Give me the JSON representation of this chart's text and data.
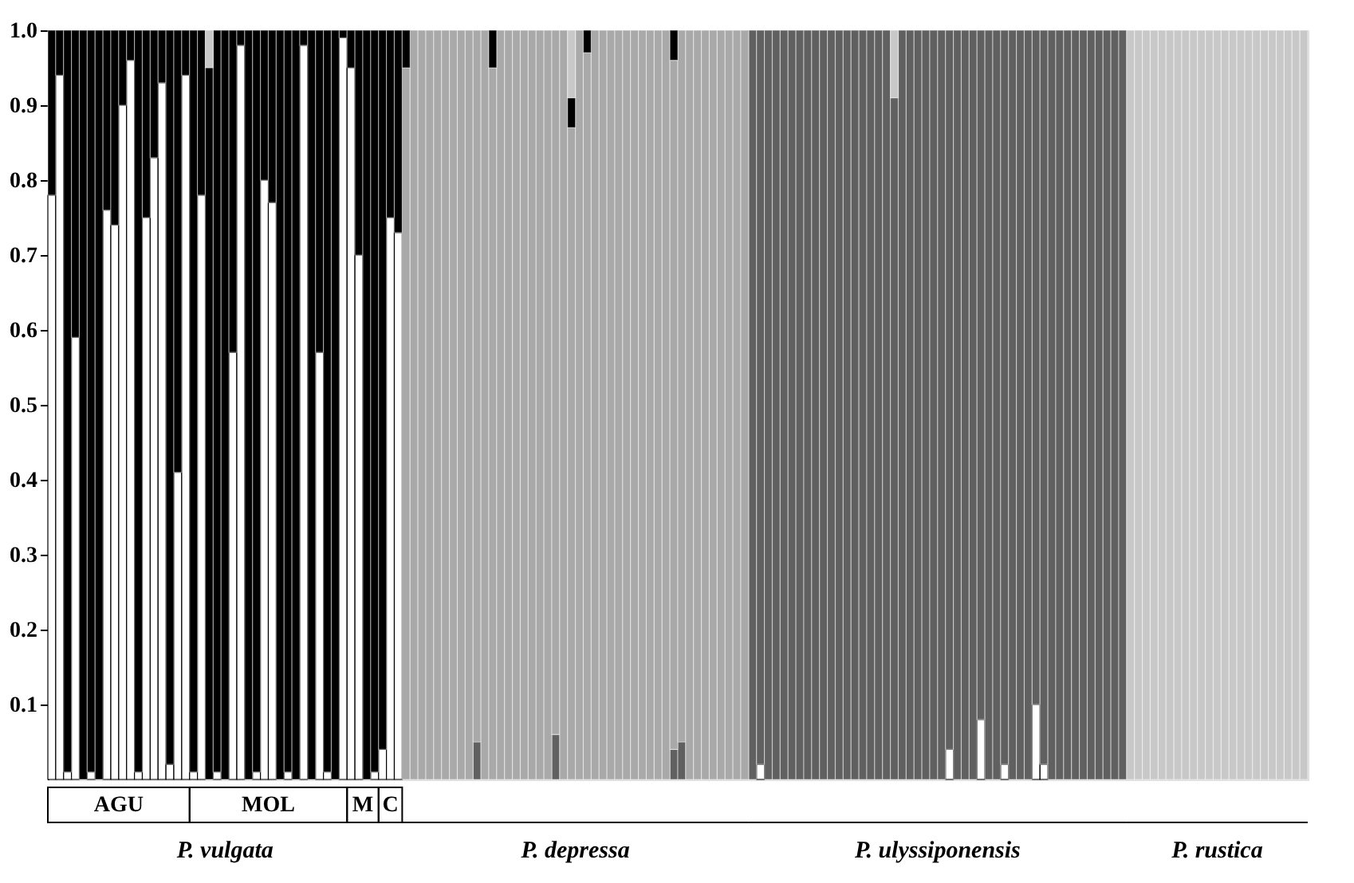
{
  "chart_data": {
    "type": "bar",
    "stacked": true,
    "categories": [
      null,
      null,
      null,
      null,
      null,
      null,
      null,
      null,
      null,
      null,
      null,
      null,
      null,
      null,
      null,
      null,
      null,
      null,
      null,
      null,
      null,
      null,
      null,
      null,
      null,
      null,
      null,
      null,
      null,
      null,
      null,
      null,
      null,
      null,
      null,
      null,
      null,
      null,
      null,
      null,
      null,
      null,
      null,
      null,
      null,
      null,
      null,
      null,
      null,
      null,
      null,
      null,
      null,
      null,
      null,
      null,
      null,
      null,
      null,
      null,
      null,
      null,
      null,
      null,
      null,
      null,
      null,
      null,
      null,
      null,
      null,
      null,
      null,
      null,
      null,
      null,
      null,
      null,
      null,
      null,
      null,
      null,
      null,
      null,
      null,
      null,
      null,
      null,
      null,
      null,
      null,
      null,
      null,
      null,
      null,
      null,
      null,
      null,
      null,
      null,
      null,
      null,
      null,
      null,
      null,
      null,
      null,
      null,
      null,
      null,
      null,
      null,
      null,
      null,
      null,
      null,
      null,
      null,
      null,
      null,
      null,
      null,
      null,
      null,
      null,
      null,
      null,
      null,
      null,
      null,
      null,
      null,
      null,
      null,
      null,
      null,
      null,
      null,
      null,
      null,
      null,
      null,
      null,
      null,
      null,
      null,
      null,
      null,
      null,
      null,
      null,
      null,
      null,
      null,
      null,
      null,
      null,
      null,
      null,
      null
    ],
    "series": [
      {
        "color": "#ffffff",
        "values": [
          0.78,
          0.94,
          0.01,
          0.59,
          0,
          0.01,
          0,
          0.76,
          0.74,
          0.9,
          0.96,
          0.01,
          0.75,
          0.83,
          0.93,
          0.02,
          0.41,
          0.94,
          0.01,
          0.78,
          0,
          0.01,
          0,
          0.57,
          0.98,
          0,
          0.01,
          0.8,
          0.77,
          0,
          0.01,
          0,
          0.98,
          0,
          0.57,
          0.01,
          0,
          0.99,
          0.95,
          0.7,
          0,
          0.01,
          0.04,
          0.75,
          0.73,
          0,
          0,
          0,
          0,
          0,
          0,
          0,
          0,
          0,
          0,
          0,
          0,
          0,
          0,
          0,
          0,
          0,
          0,
          0,
          0,
          0,
          0,
          0,
          0,
          0,
          0,
          0,
          0,
          0,
          0,
          0,
          0,
          0,
          0,
          0,
          0,
          0,
          0,
          0,
          0,
          0,
          0,
          0,
          0,
          0,
          0.02,
          0,
          0,
          0,
          0,
          0,
          0,
          0,
          0,
          0,
          0,
          0,
          0,
          0,
          0,
          0,
          0,
          0,
          0,
          0,
          0,
          0,
          0,
          0,
          0.04,
          0,
          0,
          0,
          0.08,
          0,
          0,
          0.02,
          0,
          0,
          0,
          0.1,
          0.02,
          0,
          0,
          0,
          0,
          0,
          0,
          0,
          0,
          0,
          0,
          0,
          0,
          0,
          0,
          0,
          0,
          0,
          0,
          0,
          0,
          0,
          0,
          0,
          0,
          0,
          0,
          0,
          0,
          0,
          0,
          0,
          0,
          0
        ]
      },
      {
        "color": "#606060",
        "values": [
          0,
          0,
          0,
          0,
          0,
          0,
          0,
          0,
          0,
          0,
          0,
          0,
          0,
          0,
          0,
          0,
          0,
          0,
          0,
          0,
          0,
          0,
          0,
          0,
          0,
          0,
          0,
          0,
          0,
          0,
          0,
          0,
          0,
          0,
          0,
          0,
          0,
          0,
          0,
          0,
          0,
          0,
          0,
          0,
          0,
          0,
          0,
          0,
          0,
          0,
          0,
          0,
          0,
          0,
          0.05,
          0,
          0,
          0,
          0,
          0,
          0,
          0,
          0,
          0,
          0.06,
          0,
          0,
          0,
          0,
          0,
          0,
          0,
          0,
          0,
          0,
          0,
          0,
          0,
          0,
          0.04,
          0.05,
          0,
          0,
          0,
          0,
          0,
          0,
          0,
          0,
          1,
          0.98,
          1,
          1,
          1,
          1,
          1,
          1,
          1,
          1,
          1,
          1,
          1,
          1,
          1,
          1,
          1,
          1,
          0.91,
          1,
          1,
          1,
          1,
          1,
          1,
          0.96,
          1,
          1,
          1,
          0.92,
          1,
          1,
          0.98,
          1,
          1,
          1,
          0.9,
          0.98,
          1,
          1,
          1,
          1,
          1,
          1,
          1,
          1,
          1,
          1,
          0,
          0,
          0,
          0,
          0,
          0,
          0,
          0,
          0,
          0,
          0,
          0,
          0,
          0,
          0,
          0,
          0,
          0,
          0,
          0,
          0,
          0,
          0
        ]
      },
      {
        "color": "#a9a9a9",
        "values": [
          0,
          0,
          0,
          0,
          0,
          0,
          0,
          0,
          0,
          0,
          0,
          0,
          0,
          0,
          0,
          0,
          0,
          0,
          0,
          0,
          0,
          0,
          0,
          0,
          0,
          0,
          0,
          0,
          0,
          0,
          0,
          0,
          0,
          0,
          0,
          0,
          0,
          0,
          0,
          0,
          0,
          0,
          0,
          0,
          0,
          0.95,
          1,
          1,
          1,
          1,
          1,
          1,
          1,
          1,
          0.95,
          1,
          0.95,
          1,
          1,
          1,
          1,
          1,
          1,
          1,
          0.94,
          1,
          0.87,
          1,
          0.97,
          1,
          1,
          1,
          1,
          1,
          1,
          1,
          1,
          1,
          1,
          0.92,
          0.95,
          1,
          1,
          1,
          1,
          1,
          1,
          1,
          1,
          0,
          0,
          0,
          0,
          0,
          0,
          0,
          0,
          0,
          0,
          0,
          0,
          0,
          0,
          0,
          0,
          0,
          0,
          0,
          0,
          0,
          0,
          0,
          0,
          0,
          0,
          0,
          0,
          0,
          0,
          0,
          0,
          0,
          0,
          0,
          0,
          0,
          0,
          0,
          0,
          0,
          0,
          0,
          0,
          0,
          0,
          0,
          0,
          0,
          0,
          0,
          0,
          0,
          0,
          0,
          0,
          0,
          0,
          0,
          0,
          0,
          0,
          0,
          0,
          0,
          0,
          0,
          0,
          0,
          0,
          0
        ]
      },
      {
        "color": "#000000",
        "values": [
          0.22,
          0.06,
          0.99,
          0.41,
          1,
          0.99,
          1,
          0.24,
          0.26,
          0.1,
          0.04,
          0.99,
          0.25,
          0.17,
          0.07,
          0.98,
          0.59,
          0.06,
          0.99,
          0.22,
          0.95,
          0.99,
          1,
          0.43,
          0.02,
          1,
          0.99,
          0.2,
          0.23,
          1,
          0.99,
          1,
          0.02,
          1,
          0.43,
          0.99,
          1,
          0.01,
          0.05,
          0.3,
          1,
          0.99,
          0.96,
          0.25,
          0.27,
          0.05,
          0,
          0,
          0,
          0,
          0,
          0,
          0,
          0,
          0,
          0,
          0.05,
          0,
          0,
          0,
          0,
          0,
          0,
          0,
          0,
          0,
          0.04,
          0,
          0.03,
          0,
          0,
          0,
          0,
          0,
          0,
          0,
          0,
          0,
          0,
          0.04,
          0,
          0,
          0,
          0,
          0,
          0,
          0,
          0,
          0,
          0,
          0,
          0,
          0,
          0,
          0,
          0,
          0,
          0,
          0,
          0,
          0,
          0,
          0,
          0,
          0,
          0,
          0,
          0,
          0,
          0,
          0,
          0,
          0,
          0,
          0,
          0,
          0,
          0,
          0,
          0,
          0,
          0,
          0,
          0,
          0,
          0,
          0,
          0,
          0,
          0,
          0,
          0,
          0,
          0,
          0,
          0,
          0,
          0,
          0,
          0,
          0,
          0,
          0,
          0,
          0,
          0,
          0,
          0,
          0,
          0,
          0,
          0,
          0,
          0,
          0,
          0,
          0,
          0,
          0,
          0
        ]
      },
      {
        "color": "#c8c8c8",
        "values": [
          0,
          0,
          0,
          0,
          0,
          0,
          0,
          0,
          0,
          0,
          0,
          0,
          0,
          0,
          0,
          0,
          0,
          0,
          0,
          0,
          0.05,
          0,
          0,
          0,
          0,
          0,
          0,
          0,
          0,
          0,
          0,
          0,
          0,
          0,
          0,
          0,
          0,
          0,
          0,
          0,
          0,
          0,
          0,
          0,
          0,
          0,
          0,
          0,
          0,
          0,
          0,
          0,
          0,
          0,
          0,
          0,
          0,
          0,
          0,
          0,
          0,
          0,
          0,
          0,
          0,
          0,
          0.09,
          0,
          0,
          0,
          0,
          0,
          0,
          0,
          0,
          0,
          0,
          0,
          0,
          0,
          0,
          0,
          0,
          0,
          0,
          0,
          0,
          0,
          0,
          0,
          0,
          0,
          0,
          0,
          0,
          0,
          0,
          0,
          0,
          0,
          0,
          0,
          0,
          0,
          0,
          0,
          0,
          0.09,
          0,
          0,
          0,
          0,
          0,
          0,
          0,
          0,
          0,
          0,
          0,
          0,
          0,
          0,
          0,
          0,
          0,
          0,
          0,
          0,
          0,
          0,
          0,
          0,
          0,
          0,
          0,
          0,
          0,
          1,
          1,
          1,
          1,
          1,
          1,
          1,
          1,
          1,
          1,
          1,
          1,
          1,
          1,
          1,
          1,
          1,
          1,
          1,
          1,
          1,
          1,
          1
        ]
      }
    ],
    "ylim": [
      0,
      1
    ],
    "yticks": [
      0.1,
      0.2,
      0.3,
      0.4,
      0.5,
      0.6,
      0.7,
      0.8,
      0.9,
      {
        "value": 1,
        "label": "1.0"
      }
    ],
    "tick_labels": "y",
    "legend": false,
    "annotations": [
      "AGU",
      "MOL",
      "M",
      "C",
      "P. vulgata",
      "P. depressa",
      "P. ulyssiponensis",
      "P. rustica"
    ]
  }
}
